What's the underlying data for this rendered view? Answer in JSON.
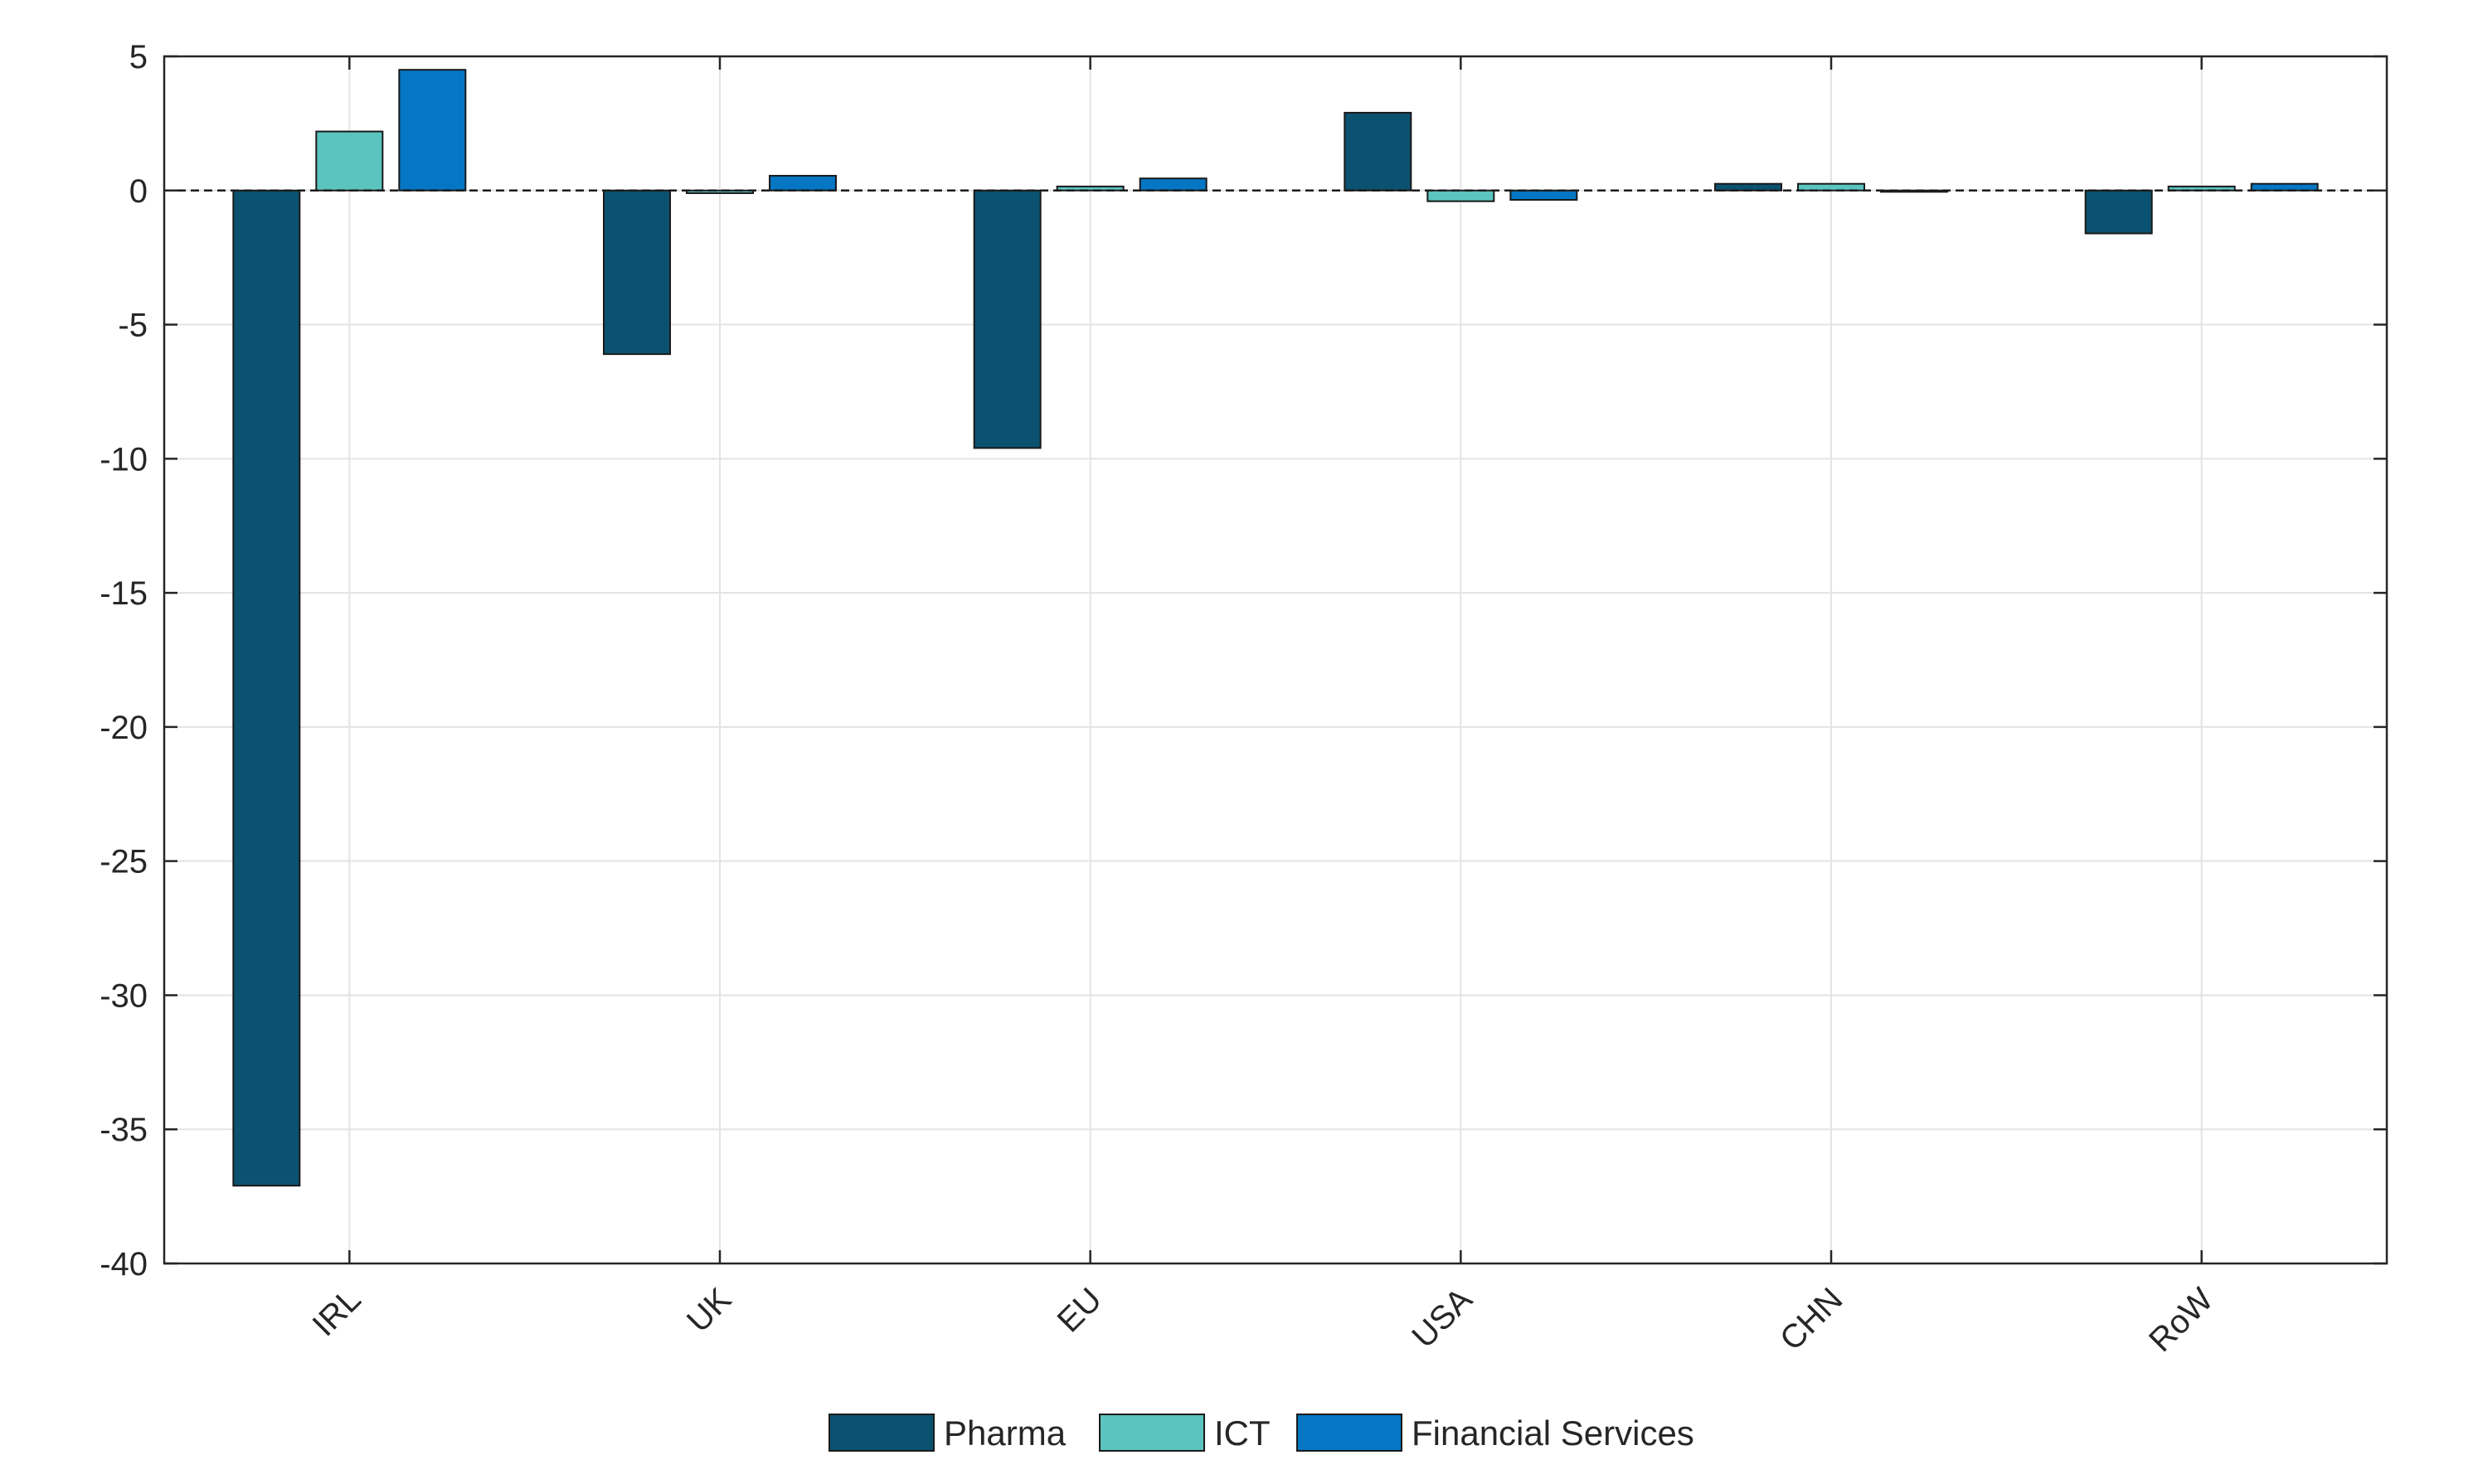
{
  "chart_data": {
    "type": "bar",
    "title": "",
    "xlabel": "",
    "ylabel": "",
    "categories": [
      "IRL",
      "UK",
      "EU",
      "USA",
      "CHN",
      "RoW"
    ],
    "series": [
      {
        "name": "Pharma",
        "color": "#0b5270",
        "values": [
          -37.1,
          -6.1,
          -9.6,
          2.9,
          0.25,
          -1.6
        ]
      },
      {
        "name": "ICT",
        "color": "#5bc4bf",
        "values": [
          2.2,
          -0.1,
          0.15,
          -0.4,
          0.25,
          0.15
        ]
      },
      {
        "name": "Financial Services",
        "color": "#0476c3",
        "values": [
          4.5,
          0.55,
          0.45,
          -0.35,
          -0.05,
          0.25
        ]
      }
    ],
    "ylim": [
      -40,
      5
    ],
    "yticks": [
      5,
      0,
      -5,
      -10,
      -15,
      -20,
      -25,
      -30,
      -35,
      -40
    ],
    "grid": true,
    "zero_line": "dashed",
    "legend_position": "bottom-center"
  }
}
